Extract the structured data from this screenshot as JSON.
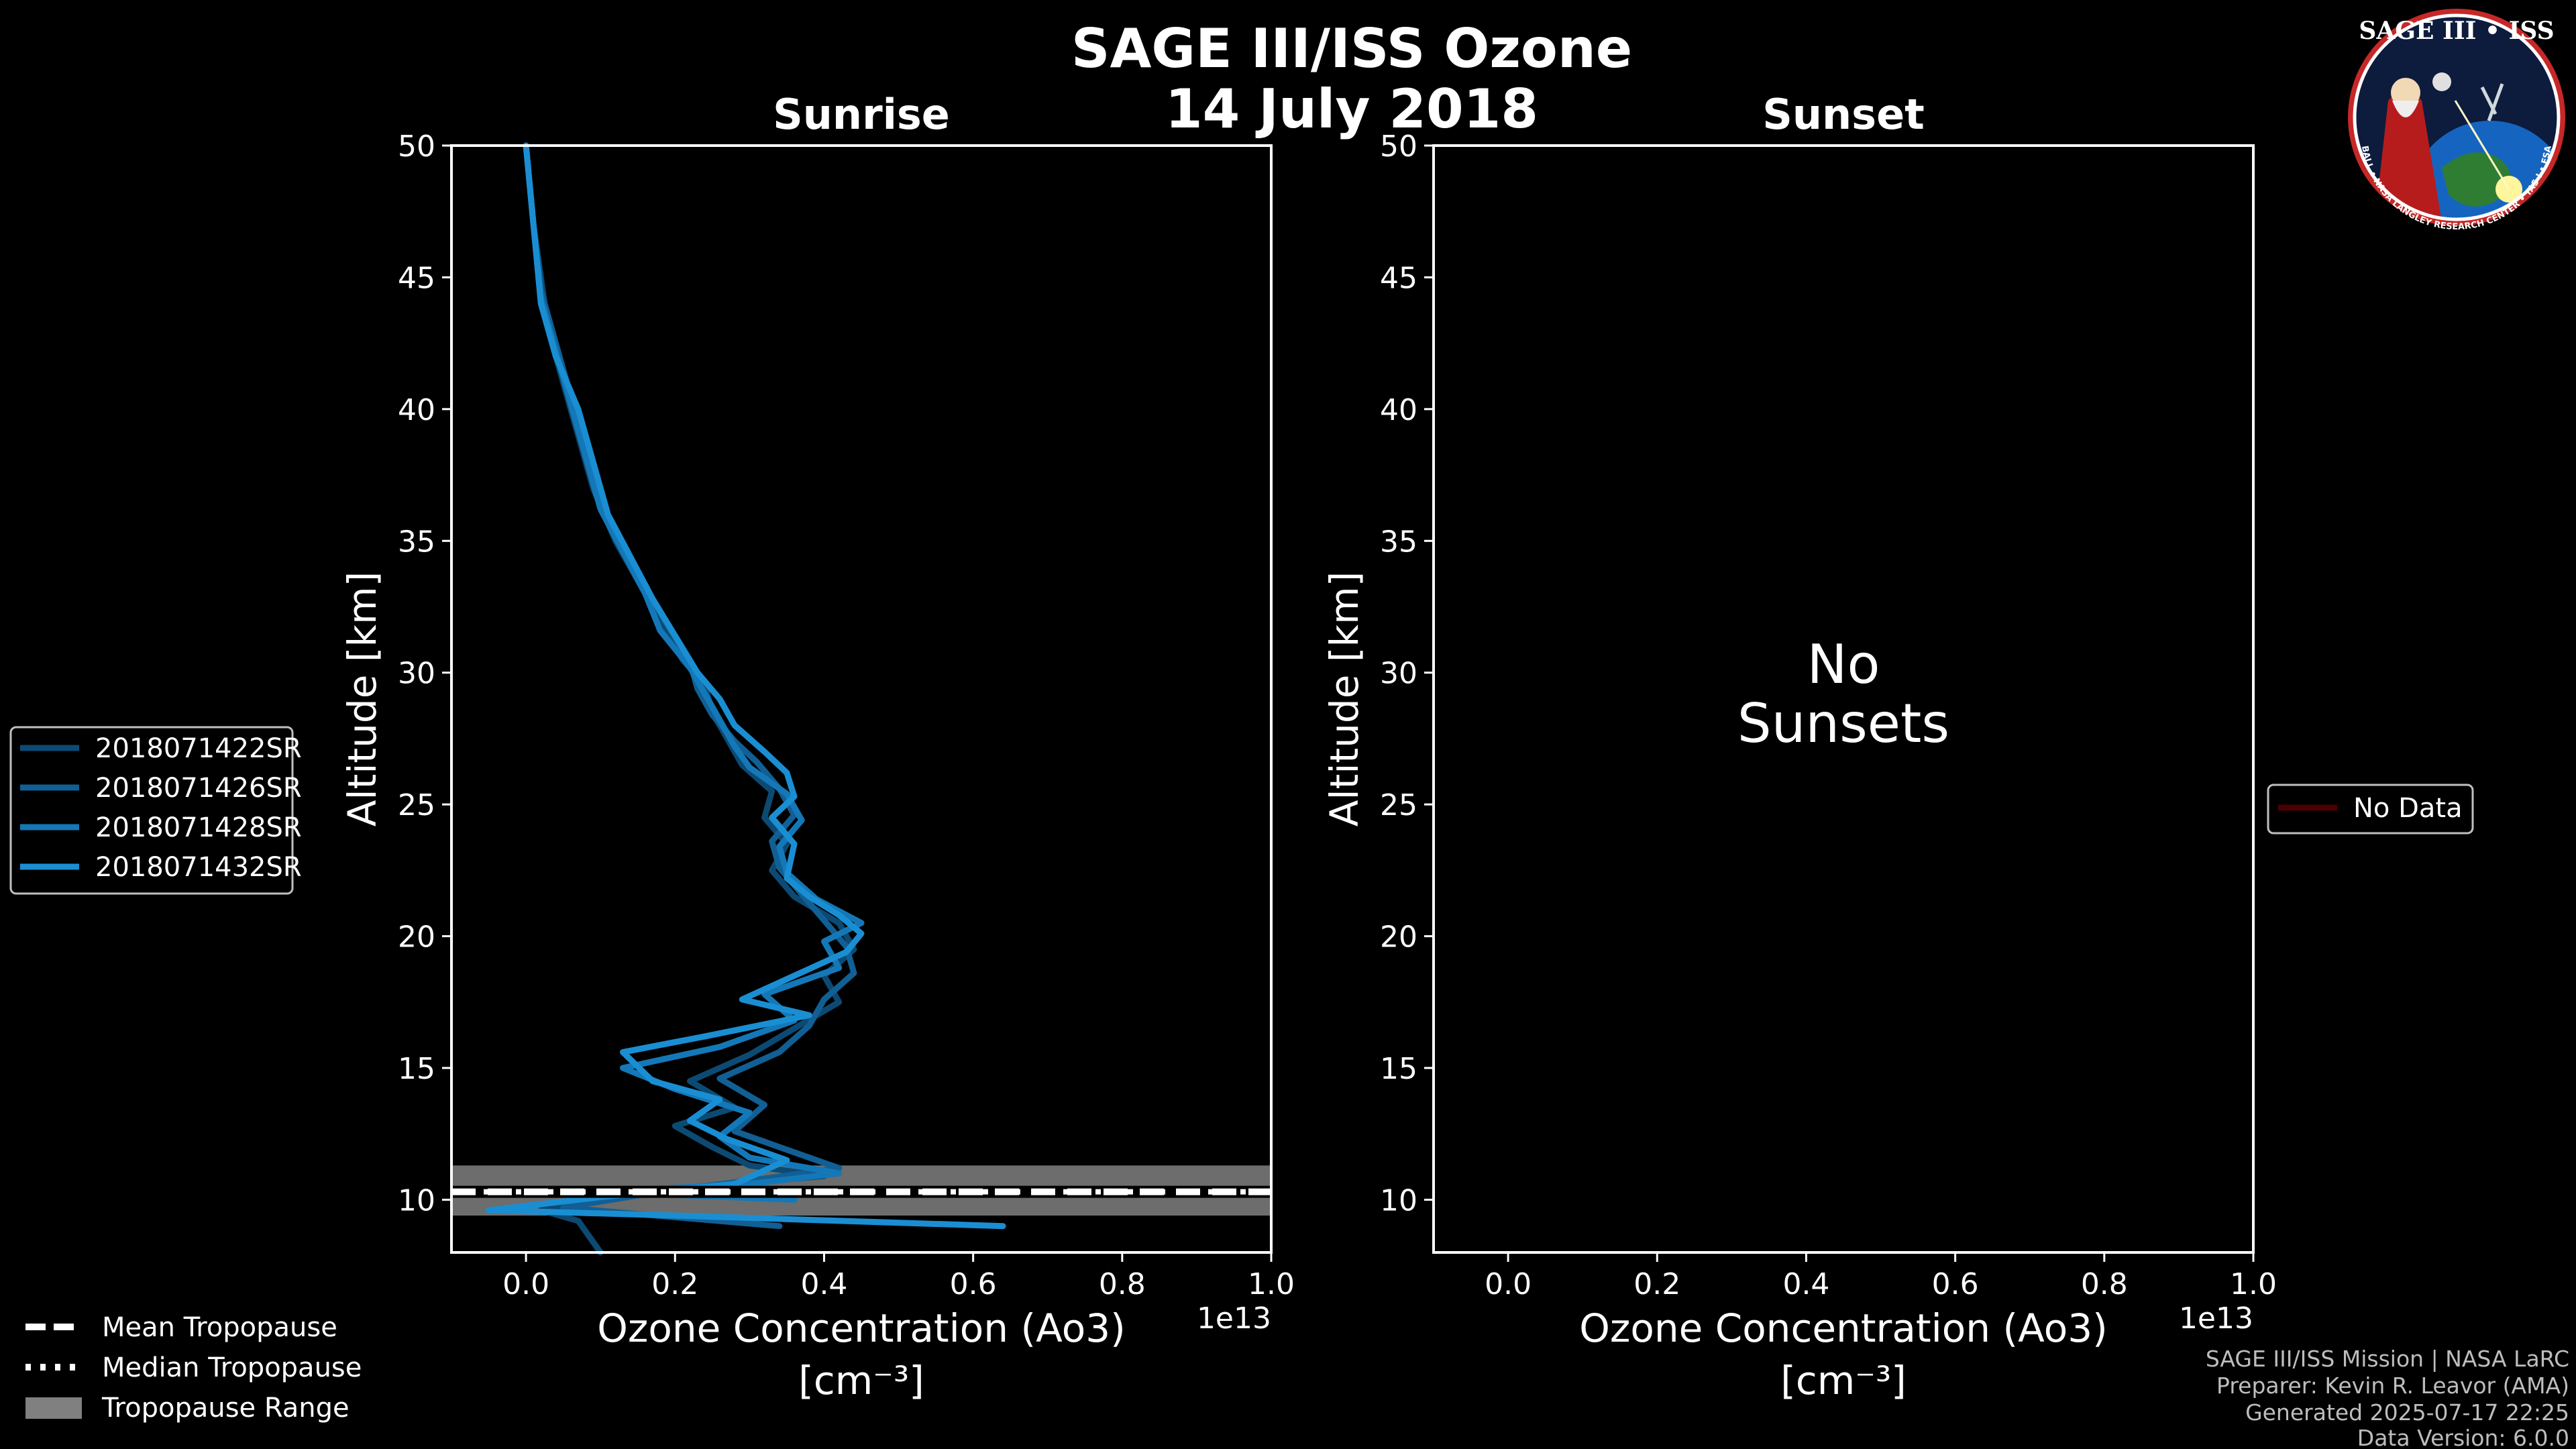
{
  "figure": {
    "title_line1": "SAGE III/ISS Ozone",
    "title_line2": "14 July 2018",
    "footer": [
      "SAGE III/ISS Mission | NASA LaRC",
      "Preparer: Kevin R. Leavor (AMA)",
      "Generated 2025-07-17 22:25",
      "Data Version: 6.0.0"
    ],
    "logo": {
      "top_text": "SAGE III • ISS",
      "ring_text": "BALL • NASA LANGLEY RESEARCH CENTER • TAS-I • ESA"
    },
    "colors": {
      "background": "#000000",
      "tropo_range": "#808080",
      "no_data": "#4a0000"
    }
  },
  "chart_data": [
    {
      "type": "line",
      "title": "Sunrise",
      "xlabel_line1": "Ozone Concentration (Ao3)",
      "xlabel_line2": "[cm⁻³]",
      "ylabel": "Altitude [km]",
      "x_multiplier_label": "1e13",
      "xlim": [
        -0.1,
        1.0
      ],
      "ylim": [
        8,
        50
      ],
      "xticks": [
        0.0,
        0.2,
        0.4,
        0.6,
        0.8,
        1.0
      ],
      "xtick_labels": [
        "0.0",
        "0.2",
        "0.4",
        "0.6",
        "0.8",
        "1.0"
      ],
      "yticks": [
        10,
        15,
        20,
        25,
        30,
        35,
        40,
        45,
        50
      ],
      "ytick_labels": [
        "10",
        "15",
        "20",
        "25",
        "30",
        "35",
        "40",
        "45",
        "50"
      ],
      "tropopause": {
        "mean": 10.3,
        "median": 10.3,
        "range": [
          9.4,
          11.3
        ]
      },
      "series": [
        {
          "name": "2018071422SR",
          "color": "#0c4a73",
          "points": [
            [
              0.1,
              8.0
            ],
            [
              0.07,
              9.2
            ],
            [
              0.02,
              9.6
            ],
            [
              0.2,
              10.4
            ],
            [
              0.4,
              10.9
            ],
            [
              0.3,
              11.3
            ],
            [
              0.25,
              12.0
            ],
            [
              0.2,
              12.8
            ],
            [
              0.28,
              13.5
            ],
            [
              0.22,
              14.5
            ],
            [
              0.3,
              15.5
            ],
            [
              0.36,
              16.5
            ],
            [
              0.42,
              17.5
            ],
            [
              0.4,
              18.5
            ],
            [
              0.44,
              19.5
            ],
            [
              0.42,
              20.5
            ],
            [
              0.36,
              21.5
            ],
            [
              0.33,
              22.5
            ],
            [
              0.35,
              23.5
            ],
            [
              0.32,
              24.5
            ],
            [
              0.33,
              25.5
            ],
            [
              0.29,
              26.5
            ],
            [
              0.27,
              27.5
            ],
            [
              0.25,
              28.5
            ],
            [
              0.24,
              29.5
            ],
            [
              0.21,
              30.5
            ],
            [
              0.18,
              32.0
            ],
            [
              0.15,
              33.5
            ],
            [
              0.12,
              35.0
            ],
            [
              0.09,
              37.0
            ],
            [
              0.07,
              39.0
            ],
            [
              0.05,
              41.0
            ],
            [
              0.03,
              43.0
            ],
            [
              0.02,
              45.0
            ],
            [
              0.01,
              47.0
            ],
            [
              0.0,
              50.0
            ]
          ]
        },
        {
          "name": "2018071426SR",
          "color": "#115f94",
          "points": [
            [
              0.34,
              9.0
            ],
            [
              0.05,
              9.7
            ],
            [
              0.18,
              10.3
            ],
            [
              0.32,
              10.8
            ],
            [
              0.42,
              11.2
            ],
            [
              0.36,
              11.8
            ],
            [
              0.28,
              12.6
            ],
            [
              0.32,
              13.6
            ],
            [
              0.26,
              14.6
            ],
            [
              0.34,
              15.6
            ],
            [
              0.38,
              16.6
            ],
            [
              0.4,
              17.6
            ],
            [
              0.44,
              18.6
            ],
            [
              0.43,
              19.6
            ],
            [
              0.4,
              20.6
            ],
            [
              0.37,
              21.6
            ],
            [
              0.34,
              22.6
            ],
            [
              0.33,
              23.6
            ],
            [
              0.36,
              24.6
            ],
            [
              0.34,
              25.6
            ],
            [
              0.31,
              26.6
            ],
            [
              0.28,
              27.4
            ],
            [
              0.25,
              28.4
            ],
            [
              0.23,
              29.4
            ],
            [
              0.22,
              30.4
            ],
            [
              0.19,
              31.8
            ],
            [
              0.16,
              33.2
            ],
            [
              0.13,
              34.8
            ],
            [
              0.1,
              36.5
            ],
            [
              0.08,
              38.5
            ],
            [
              0.06,
              40.5
            ],
            [
              0.04,
              42.5
            ],
            [
              0.02,
              44.5
            ],
            [
              0.01,
              47.0
            ],
            [
              0.0,
              50.0
            ]
          ]
        },
        {
          "name": "2018071428SR",
          "color": "#1478b8",
          "points": [
            [
              0.36,
              10.0
            ],
            [
              0.1,
              10.3
            ],
            [
              0.3,
              10.6
            ],
            [
              0.42,
              11.0
            ],
            [
              0.3,
              11.6
            ],
            [
              0.26,
              12.4
            ],
            [
              0.3,
              13.3
            ],
            [
              0.2,
              14.2
            ],
            [
              0.13,
              15.0
            ],
            [
              0.26,
              15.8
            ],
            [
              0.36,
              16.8
            ],
            [
              0.32,
              17.8
            ],
            [
              0.42,
              18.8
            ],
            [
              0.4,
              19.8
            ],
            [
              0.45,
              20.5
            ],
            [
              0.39,
              21.4
            ],
            [
              0.35,
              22.4
            ],
            [
              0.34,
              23.4
            ],
            [
              0.37,
              24.4
            ],
            [
              0.35,
              25.4
            ],
            [
              0.3,
              26.4
            ],
            [
              0.28,
              27.2
            ],
            [
              0.26,
              28.2
            ],
            [
              0.24,
              29.2
            ],
            [
              0.22,
              30.2
            ],
            [
              0.18,
              31.6
            ],
            [
              0.16,
              33.0
            ],
            [
              0.13,
              34.6
            ],
            [
              0.1,
              36.2
            ],
            [
              0.08,
              38.2
            ],
            [
              0.06,
              40.2
            ],
            [
              0.04,
              42.2
            ],
            [
              0.02,
              44.2
            ],
            [
              0.01,
              47.0
            ],
            [
              0.0,
              50.0
            ]
          ]
        },
        {
          "name": "2018071432SR",
          "color": "#1a8ed3",
          "points": [
            [
              0.64,
              9.0
            ],
            [
              0.2,
              9.4
            ],
            [
              -0.05,
              9.6
            ],
            [
              0.1,
              10.1
            ],
            [
              0.28,
              10.6
            ],
            [
              0.35,
              11.5
            ],
            [
              0.27,
              12.3
            ],
            [
              0.22,
              13.0
            ],
            [
              0.26,
              13.8
            ],
            [
              0.17,
              14.5
            ],
            [
              0.13,
              15.6
            ],
            [
              0.24,
              16.2
            ],
            [
              0.38,
              17.0
            ],
            [
              0.29,
              17.6
            ],
            [
              0.36,
              18.5
            ],
            [
              0.43,
              19.4
            ],
            [
              0.45,
              20.1
            ],
            [
              0.42,
              20.8
            ],
            [
              0.38,
              21.5
            ],
            [
              0.35,
              22.2
            ],
            [
              0.36,
              23.5
            ],
            [
              0.33,
              24.5
            ],
            [
              0.36,
              25.3
            ],
            [
              0.35,
              26.2
            ],
            [
              0.32,
              27.0
            ],
            [
              0.28,
              28.0
            ],
            [
              0.26,
              29.0
            ],
            [
              0.23,
              30.0
            ],
            [
              0.2,
              31.4
            ],
            [
              0.17,
              32.8
            ],
            [
              0.14,
              34.4
            ],
            [
              0.11,
              36.0
            ],
            [
              0.09,
              38.0
            ],
            [
              0.07,
              40.0
            ],
            [
              0.04,
              42.0
            ],
            [
              0.02,
              44.0
            ],
            [
              0.01,
              47.0
            ],
            [
              0.0,
              50.0
            ]
          ]
        }
      ]
    },
    {
      "type": "line",
      "title": "Sunset",
      "xlabel_line1": "Ozone Concentration (Ao3)",
      "xlabel_line2": "[cm⁻³]",
      "ylabel": "Altitude [km]",
      "x_multiplier_label": "1e13",
      "xlim": [
        -0.1,
        1.0
      ],
      "ylim": [
        8,
        50
      ],
      "xticks": [
        0.0,
        0.2,
        0.4,
        0.6,
        0.8,
        1.0
      ],
      "xtick_labels": [
        "0.0",
        "0.2",
        "0.4",
        "0.6",
        "0.8",
        "1.0"
      ],
      "yticks": [
        10,
        15,
        20,
        25,
        30,
        35,
        40,
        45,
        50
      ],
      "ytick_labels": [
        "10",
        "15",
        "20",
        "25",
        "30",
        "35",
        "40",
        "45",
        "50"
      ],
      "annotation_line1": "No",
      "annotation_line2": "Sunsets",
      "series": []
    }
  ],
  "legends": {
    "sunrise": [
      "2018071422SR",
      "2018071426SR",
      "2018071428SR",
      "2018071432SR"
    ],
    "sunset": [
      "No Data"
    ],
    "tropopause": [
      "Mean Tropopause",
      "Median Tropopause",
      "Tropopause Range"
    ]
  }
}
